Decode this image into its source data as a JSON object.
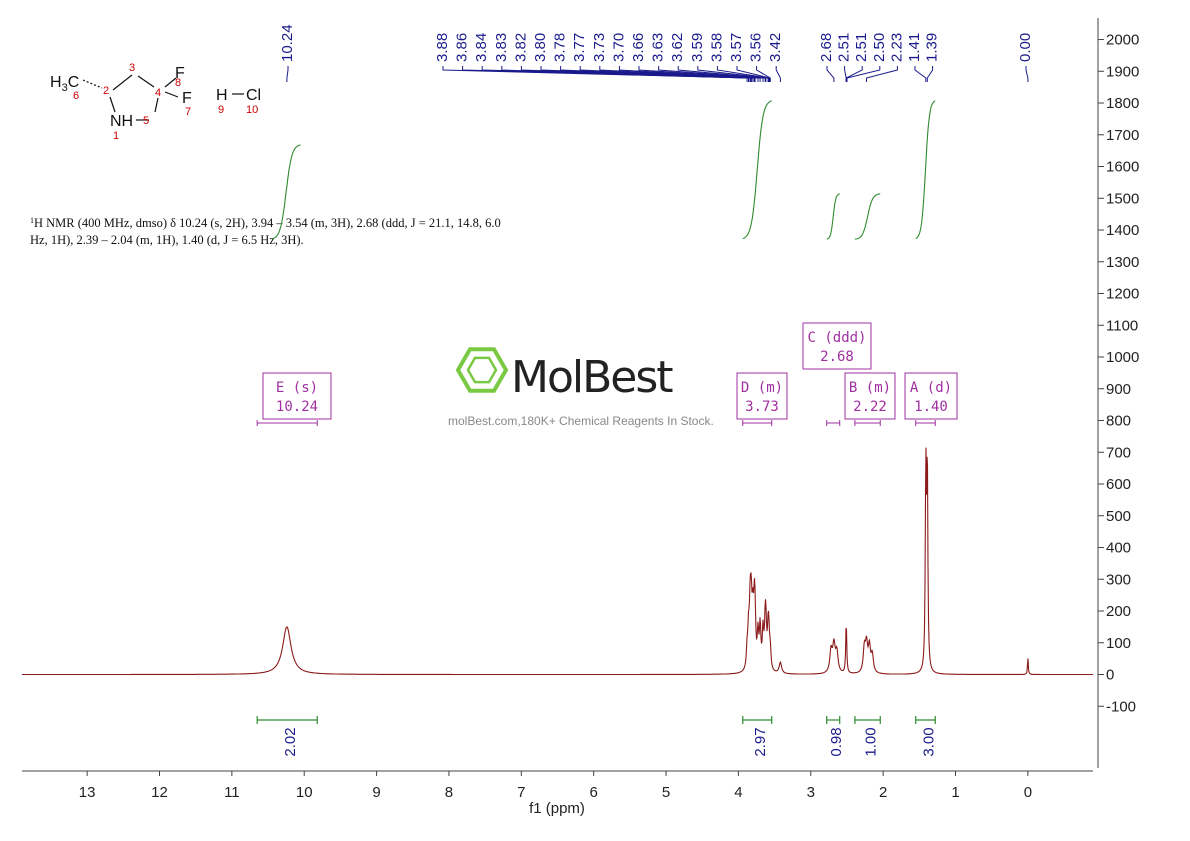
{
  "chart_data": {
    "type": "line",
    "xlabel": "f1 (ppm)",
    "xlim": [
      13.9,
      -0.9
    ],
    "ylim": [
      -200,
      2030
    ],
    "x_ticks": [
      13,
      12,
      11,
      10,
      9,
      8,
      7,
      6,
      5,
      4,
      3,
      2,
      1,
      0
    ],
    "x_tick_labels": [
      "13",
      "12",
      "11",
      "10",
      "9",
      "8",
      "7",
      "6",
      "5",
      "4",
      "3",
      "2",
      "1",
      "0"
    ],
    "y_ticks": [
      -100,
      0,
      100,
      200,
      300,
      400,
      500,
      600,
      700,
      800,
      900,
      1000,
      1100,
      1200,
      1300,
      1400,
      1500,
      1600,
      1700,
      1800,
      1900,
      2000
    ],
    "y_tick_labels": [
      "-100",
      "0",
      "100",
      "200",
      "300",
      "400",
      "500",
      "600",
      "700",
      "800",
      "900",
      "1000",
      "1100",
      "1200",
      "1300",
      "1400",
      "1500",
      "1600",
      "1700",
      "1800",
      "1900",
      "2000"
    ],
    "colors": {
      "spectrum": "#8b1a1a",
      "integral": "#2e8b2e",
      "peak_label": "#1a1a8c",
      "multiplet": "#a030a0",
      "logo": "#7ac943"
    },
    "peaks": [
      {
        "ppm": 10.24,
        "height": 150,
        "width": 0.07
      },
      {
        "ppm": 3.88,
        "height": 60,
        "width": 0.012
      },
      {
        "ppm": 3.86,
        "height": 110,
        "width": 0.012
      },
      {
        "ppm": 3.84,
        "height": 130,
        "width": 0.012
      },
      {
        "ppm": 3.83,
        "height": 115,
        "width": 0.012
      },
      {
        "ppm": 3.82,
        "height": 125,
        "width": 0.012
      },
      {
        "ppm": 3.8,
        "height": 145,
        "width": 0.012
      },
      {
        "ppm": 3.78,
        "height": 155,
        "width": 0.012
      },
      {
        "ppm": 3.77,
        "height": 120,
        "width": 0.012
      },
      {
        "ppm": 3.73,
        "height": 110,
        "width": 0.012
      },
      {
        "ppm": 3.7,
        "height": 135,
        "width": 0.012
      },
      {
        "ppm": 3.66,
        "height": 120,
        "width": 0.012
      },
      {
        "ppm": 3.63,
        "height": 125,
        "width": 0.012
      },
      {
        "ppm": 3.62,
        "height": 105,
        "width": 0.012
      },
      {
        "ppm": 3.59,
        "height": 100,
        "width": 0.012
      },
      {
        "ppm": 3.58,
        "height": 90,
        "width": 0.012
      },
      {
        "ppm": 3.56,
        "height": 60,
        "width": 0.012
      },
      {
        "ppm": 3.42,
        "height": 35,
        "width": 0.02
      },
      {
        "ppm": 2.72,
        "height": 70,
        "width": 0.02
      },
      {
        "ppm": 2.68,
        "height": 85,
        "width": 0.02
      },
      {
        "ppm": 2.64,
        "height": 65,
        "width": 0.02
      },
      {
        "ppm": 2.51,
        "height": 165,
        "width": 0.008
      },
      {
        "ppm": 2.26,
        "height": 75,
        "width": 0.018
      },
      {
        "ppm": 2.23,
        "height": 85,
        "width": 0.018
      },
      {
        "ppm": 2.19,
        "height": 80,
        "width": 0.018
      },
      {
        "ppm": 2.15,
        "height": 55,
        "width": 0.018
      },
      {
        "ppm": 1.41,
        "height": 620,
        "width": 0.009
      },
      {
        "ppm": 1.39,
        "height": 640,
        "width": 0.009
      },
      {
        "ppm": 0.0,
        "height": 55,
        "width": 0.006
      }
    ],
    "peak_labels": {
      "left_group": [
        "10.24"
      ],
      "mid_group": [
        "3.88",
        "3.86",
        "3.84",
        "3.83",
        "3.82",
        "3.80",
        "3.78",
        "3.77",
        "3.73",
        "3.70",
        "3.66",
        "3.63",
        "3.62",
        "3.59",
        "3.58",
        "3.57",
        "3.56",
        "3.42"
      ],
      "right_group": [
        "2.68",
        "2.51",
        "2.51",
        "2.50",
        "2.23",
        "1.41",
        "1.39"
      ],
      "ref_group": [
        "0.00"
      ]
    },
    "integrals": [
      {
        "value": "2.02",
        "from": 10.65,
        "to": 9.82
      },
      {
        "value": "2.97",
        "from": 3.94,
        "to": 3.54
      },
      {
        "value": "0.98",
        "from": 2.78,
        "to": 2.6
      },
      {
        "value": "1.00",
        "from": 2.39,
        "to": 2.04
      },
      {
        "value": "3.00",
        "from": 1.55,
        "to": 1.28
      }
    ],
    "integral_curves": [
      {
        "from": 10.45,
        "to": 10.05,
        "y_start": 1370,
        "y_end": 1670
      },
      {
        "from": 3.94,
        "to": 3.54,
        "y_start": 1370,
        "y_end": 1810
      },
      {
        "from": 2.78,
        "to": 2.6,
        "y_start": 1370,
        "y_end": 1515
      },
      {
        "from": 2.39,
        "to": 2.04,
        "y_start": 1370,
        "y_end": 1515
      },
      {
        "from": 1.55,
        "to": 1.28,
        "y_start": 1370,
        "y_end": 1810
      }
    ],
    "multiplets": [
      {
        "line1": "E (s)",
        "line2": "10.24",
        "center": 10.24,
        "from": 10.65,
        "to": 9.82
      },
      {
        "line1": "D (m)",
        "line2": "3.73",
        "center": 3.73,
        "from": 3.94,
        "to": 3.54
      },
      {
        "line1": "C (ddd)",
        "line2": "2.68",
        "center": 2.68,
        "from": 2.78,
        "to": 2.6
      },
      {
        "line1": "B (m)",
        "line2": "2.22",
        "center": 2.22,
        "from": 2.39,
        "to": 2.04
      },
      {
        "line1": "A (d)",
        "line2": "1.40",
        "center": 1.4,
        "from": 1.55,
        "to": 1.28
      }
    ]
  },
  "molecule": {
    "ch3": "H",
    "ch3_sub": "3",
    "ch3_c": "C",
    "nh": "NH",
    "f8": "F",
    "f7": "F",
    "h": "H",
    "cl": "Cl",
    "numbers": [
      "1",
      "2",
      "3",
      "4",
      "5",
      "6",
      "7",
      "8",
      "9",
      "10"
    ]
  },
  "nmr_text": {
    "line1_sup": "1",
    "line1": "H NMR (400 MHz, dmso) δ 10.24 (s, 2H), 3.94 – 3.54 (m, 3H), 2.68 (ddd, J = 21.1, 14.8, 6.0",
    "line2": "Hz, 1H), 2.39 – 2.04 (m, 1H), 1.40 (d, J = 6.5 Hz, 3H)."
  },
  "watermark": {
    "logo_text": "MolBest",
    "tagline": "molBest.com,180K+ Chemical Reagents In Stock."
  }
}
